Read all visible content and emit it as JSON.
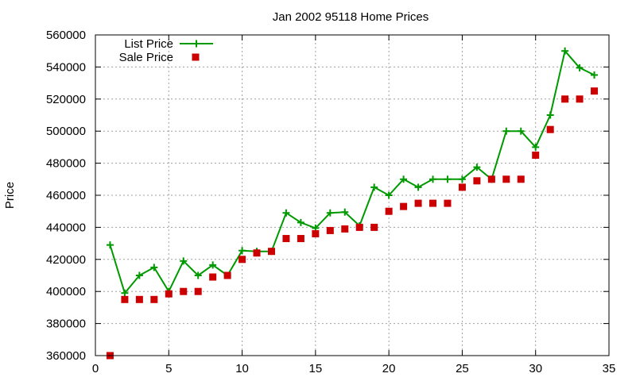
{
  "chart_data": {
    "type": "line",
    "title": "Jan 2002 95118 Home Prices",
    "xlabel": "",
    "ylabel": "Price",
    "xlim": [
      0,
      35
    ],
    "ylim": [
      360000,
      560000
    ],
    "x_ticks": [
      0,
      5,
      10,
      15,
      20,
      25,
      30,
      35
    ],
    "y_ticks": [
      360000,
      380000,
      400000,
      420000,
      440000,
      460000,
      480000,
      500000,
      520000,
      540000,
      560000
    ],
    "x_tick_labels": [
      "0",
      "5",
      "10",
      "15",
      "20",
      "25",
      "30",
      "35"
    ],
    "y_tick_labels": [
      "360000",
      "380000",
      "400000",
      "420000",
      "440000",
      "460000",
      "480000",
      "500000",
      "520000",
      "540000",
      "560000"
    ],
    "grid": true,
    "legend_position": "top-left",
    "series": [
      {
        "name": "List Price",
        "style": "linespoints",
        "marker": "plus",
        "color": "#009900",
        "x": [
          1,
          2,
          3,
          4,
          5,
          6,
          7,
          8,
          9,
          10,
          11,
          12,
          13,
          14,
          15,
          16,
          17,
          18,
          19,
          20,
          21,
          22,
          23,
          24,
          25,
          26,
          27,
          28,
          29,
          30,
          31,
          32,
          33,
          34
        ],
        "y": [
          429000,
          399000,
          410000,
          415000,
          400000,
          419000,
          410000,
          416500,
          410000,
          425500,
          425000,
          425000,
          449000,
          443000,
          439500,
          449000,
          449500,
          441000,
          465000,
          460000,
          470000,
          465000,
          470000,
          470000,
          470000,
          477500,
          470000,
          500000,
          500000,
          490000,
          510000,
          550000,
          539500,
          535000
        ]
      },
      {
        "name": "Sale Price",
        "style": "points",
        "marker": "square",
        "color": "#cc0000",
        "x": [
          1,
          2,
          3,
          4,
          5,
          6,
          7,
          8,
          9,
          10,
          11,
          12,
          13,
          14,
          15,
          16,
          17,
          18,
          19,
          20,
          21,
          22,
          23,
          24,
          25,
          26,
          27,
          28,
          29,
          30,
          31,
          32,
          33,
          34
        ],
        "y": [
          360000,
          395000,
          395000,
          395000,
          398500,
          400000,
          400000,
          409000,
          410000,
          420000,
          424000,
          425000,
          433000,
          433000,
          436000,
          438000,
          439000,
          440000,
          440000,
          450000,
          453000,
          455000,
          455000,
          455000,
          465000,
          469000,
          470000,
          470000,
          470000,
          485000,
          501000,
          520000,
          520000,
          525000
        ]
      }
    ]
  }
}
